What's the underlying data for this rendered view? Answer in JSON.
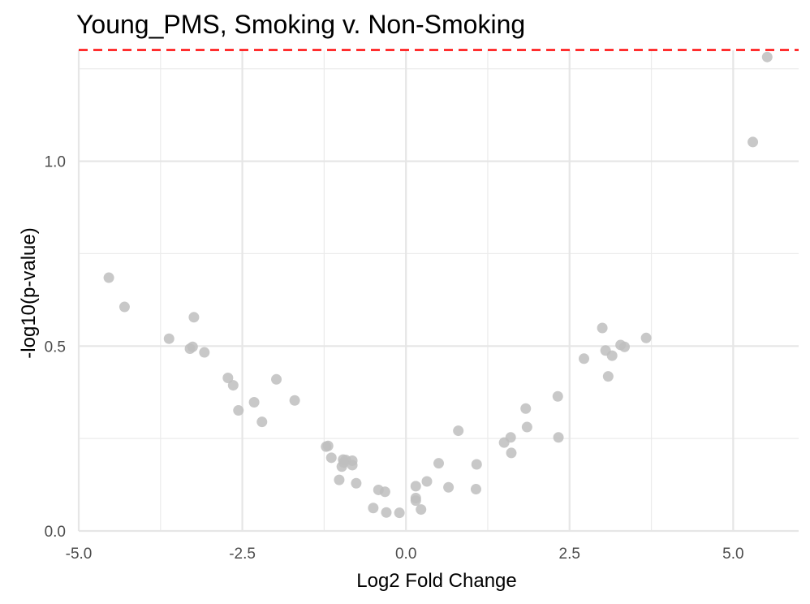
{
  "chart_data": {
    "type": "scatter",
    "title": "Young_PMS, Smoking v. Non-Smoking",
    "xlabel": "Log2 Fold Change",
    "ylabel": "-log10(p-value)",
    "xlim": [
      -5.0,
      6.0
    ],
    "ylim": [
      0.0,
      1.3
    ],
    "x_ticks": [
      -5.0,
      -2.5,
      0.0,
      2.5,
      5.0
    ],
    "x_tick_labels": [
      "-5.0",
      "-2.5",
      "0.0",
      "2.5",
      "5.0"
    ],
    "y_ticks": [
      0.0,
      0.5,
      1.0
    ],
    "y_tick_labels": [
      "0.0",
      "0.5",
      "1.0"
    ],
    "grid": true,
    "threshold_line": {
      "y": 1.301,
      "color": "#ff0000",
      "style": "dashed"
    },
    "point_color": "#bebebe",
    "points": [
      {
        "x": -4.54,
        "y": 0.685
      },
      {
        "x": -4.3,
        "y": 0.606
      },
      {
        "x": -3.62,
        "y": 0.52
      },
      {
        "x": -3.3,
        "y": 0.493
      },
      {
        "x": -3.26,
        "y": 0.498
      },
      {
        "x": -3.24,
        "y": 0.578
      },
      {
        "x": -3.08,
        "y": 0.483
      },
      {
        "x": -2.72,
        "y": 0.414
      },
      {
        "x": -2.64,
        "y": 0.394
      },
      {
        "x": -2.56,
        "y": 0.326
      },
      {
        "x": -2.32,
        "y": 0.348
      },
      {
        "x": -2.2,
        "y": 0.295
      },
      {
        "x": -1.98,
        "y": 0.41
      },
      {
        "x": -1.7,
        "y": 0.353
      },
      {
        "x": -1.22,
        "y": 0.228
      },
      {
        "x": -1.19,
        "y": 0.23
      },
      {
        "x": -1.14,
        "y": 0.198
      },
      {
        "x": -1.02,
        "y": 0.138
      },
      {
        "x": -0.98,
        "y": 0.174
      },
      {
        "x": -0.96,
        "y": 0.193
      },
      {
        "x": -0.95,
        "y": 0.185
      },
      {
        "x": -0.92,
        "y": 0.192
      },
      {
        "x": -0.82,
        "y": 0.19
      },
      {
        "x": -0.82,
        "y": 0.178
      },
      {
        "x": -0.76,
        "y": 0.129
      },
      {
        "x": -0.5,
        "y": 0.062
      },
      {
        "x": -0.42,
        "y": 0.111
      },
      {
        "x": -0.32,
        "y": 0.106
      },
      {
        "x": -0.3,
        "y": 0.05
      },
      {
        "x": -0.1,
        "y": 0.049
      },
      {
        "x": 0.15,
        "y": 0.121
      },
      {
        "x": 0.15,
        "y": 0.089
      },
      {
        "x": 0.15,
        "y": 0.082
      },
      {
        "x": 0.23,
        "y": 0.058
      },
      {
        "x": 0.32,
        "y": 0.134
      },
      {
        "x": 0.5,
        "y": 0.183
      },
      {
        "x": 0.65,
        "y": 0.118
      },
      {
        "x": 0.8,
        "y": 0.271
      },
      {
        "x": 1.07,
        "y": 0.113
      },
      {
        "x": 1.08,
        "y": 0.18
      },
      {
        "x": 1.5,
        "y": 0.239
      },
      {
        "x": 1.6,
        "y": 0.253
      },
      {
        "x": 1.61,
        "y": 0.211
      },
      {
        "x": 1.83,
        "y": 0.331
      },
      {
        "x": 1.85,
        "y": 0.281
      },
      {
        "x": 2.32,
        "y": 0.364
      },
      {
        "x": 2.33,
        "y": 0.253
      },
      {
        "x": 2.72,
        "y": 0.466
      },
      {
        "x": 3.0,
        "y": 0.549
      },
      {
        "x": 3.05,
        "y": 0.488
      },
      {
        "x": 3.09,
        "y": 0.418
      },
      {
        "x": 3.15,
        "y": 0.474
      },
      {
        "x": 3.28,
        "y": 0.503
      },
      {
        "x": 3.34,
        "y": 0.498
      },
      {
        "x": 3.67,
        "y": 0.522
      },
      {
        "x": 5.3,
        "y": 1.052
      },
      {
        "x": 5.52,
        "y": 1.282
      }
    ]
  }
}
